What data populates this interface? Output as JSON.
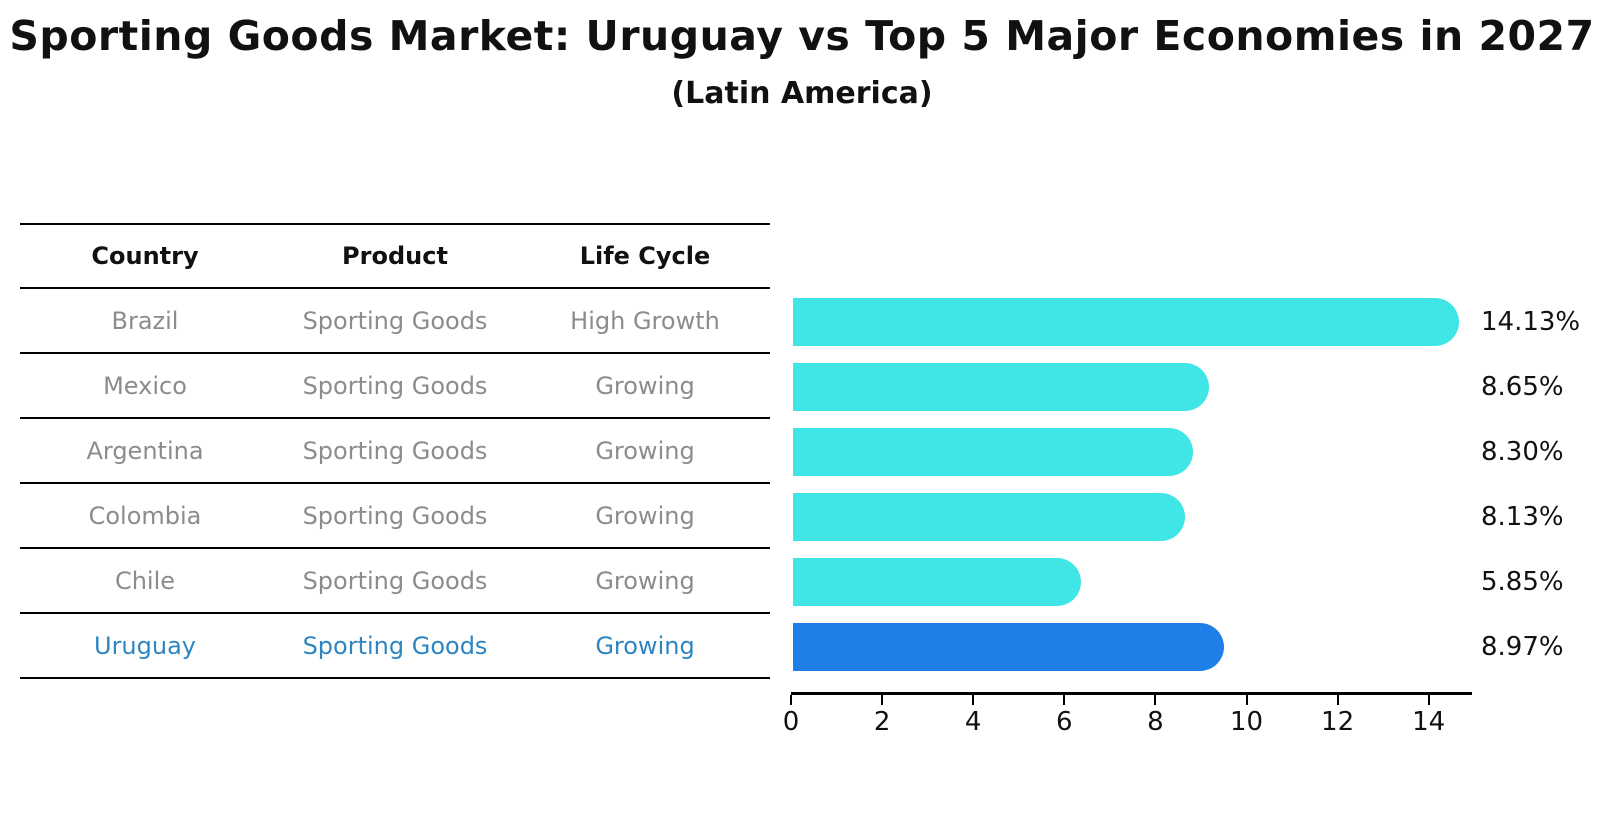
{
  "header": {
    "title": "Sporting Goods Market: Uruguay vs Top 5 Major Economies in 2027",
    "subtitle": "(Latin America)"
  },
  "table": {
    "columns": [
      "Country",
      "Product",
      "Life Cycle"
    ],
    "rows": [
      {
        "country": "Brazil",
        "product": "Sporting Goods",
        "life_cycle": "High Growth",
        "highlight": false
      },
      {
        "country": "Mexico",
        "product": "Sporting Goods",
        "life_cycle": "Growing",
        "highlight": false
      },
      {
        "country": "Argentina",
        "product": "Sporting Goods",
        "life_cycle": "Growing",
        "highlight": false
      },
      {
        "country": "Colombia",
        "product": "Sporting Goods",
        "life_cycle": "Growing",
        "highlight": false
      },
      {
        "country": "Chile",
        "product": "Sporting Goods",
        "life_cycle": "Growing",
        "highlight": false
      },
      {
        "country": "Uruguay",
        "product": "Sporting Goods",
        "life_cycle": "Growing",
        "highlight": true
      }
    ]
  },
  "chart_data": {
    "type": "bar",
    "orientation": "horizontal",
    "title": "Sporting Goods Market: Uruguay vs Top 5 Major Economies in 2027 (Latin America)",
    "categories": [
      "Brazil",
      "Mexico",
      "Argentina",
      "Colombia",
      "Chile",
      "Uruguay"
    ],
    "values": [
      14.13,
      8.65,
      8.3,
      8.13,
      5.85,
      8.97
    ],
    "value_labels": [
      "14.13%",
      "8.65%",
      "8.30%",
      "8.13%",
      "5.85%",
      "8.97%"
    ],
    "highlight_index": 5,
    "xlim": [
      0,
      15
    ],
    "xticks": [
      0,
      2,
      4,
      6,
      8,
      10,
      12,
      14
    ],
    "grid": false,
    "legend": "none",
    "bar_color": "#40E5E5",
    "highlight_bar_color": "#1E7FE8",
    "highlight_text_color": "#2E86C1",
    "value_label_color": "#111111"
  }
}
